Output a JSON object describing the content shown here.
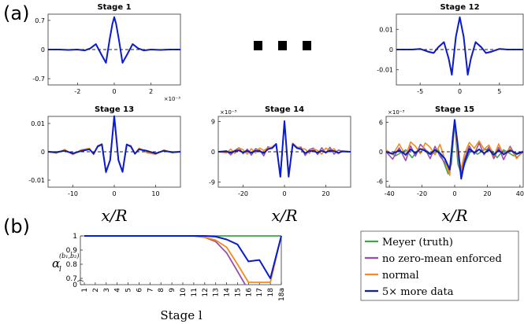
{
  "panel_labels": {
    "a": "(a)",
    "b": "(b)"
  },
  "ellipsis": "■ ■ ■",
  "colors": {
    "meyer": "#3fa34d",
    "no_zero_mean": "#9a4fb0",
    "normal": "#f28c1c",
    "more_data": "#0a1ccf",
    "dashed": "#222222",
    "axis": "#333333"
  },
  "chart_data": [
    {
      "type": "line",
      "title": "Stage 1",
      "xlabel": "",
      "xlim": [
        -3.6,
        3.6
      ],
      "ylim": [
        -0.85,
        0.85
      ],
      "xticks": [
        "-2",
        "0",
        "2"
      ],
      "xtick_values": [
        -2,
        0,
        2
      ],
      "yticks": [
        "0.7",
        "0",
        "-0.7"
      ],
      "ytick_values": [
        0.7,
        0,
        -0.7
      ],
      "x_multiplier": "×10⁻³",
      "series": [
        {
          "key": "more_data",
          "x": [
            -3.6,
            -3,
            -2.5,
            -2,
            -1.6,
            -1.3,
            -1,
            -0.7,
            -0.45,
            -0.25,
            -0.1,
            0,
            0.1,
            0.25,
            0.45,
            0.7,
            1,
            1.3,
            1.6,
            2,
            2.5,
            3,
            3.6
          ],
          "y": [
            0,
            0,
            -0.01,
            0,
            -0.02,
            0.03,
            0.13,
            -0.12,
            -0.32,
            0.25,
            0.62,
            0.78,
            0.62,
            0.25,
            -0.32,
            -0.12,
            0.13,
            0.03,
            -0.02,
            0,
            -0.01,
            0,
            0
          ]
        }
      ]
    },
    {
      "type": "line",
      "title": "Stage 12",
      "xlabel": "",
      "xlim": [
        -8,
        8
      ],
      "ylim": [
        -0.0175,
        0.0175
      ],
      "xticks": [
        "-5",
        "0",
        "5"
      ],
      "xtick_values": [
        -5,
        0,
        5
      ],
      "yticks": [
        "0.01",
        "0",
        "-0.01"
      ],
      "ytick_values": [
        0.01,
        0,
        -0.01
      ],
      "series": [
        {
          "key": "normal",
          "x": [
            -8,
            -6,
            -5,
            -4,
            -3.3,
            -2.7,
            -2,
            -1.4,
            -1,
            -0.5,
            0,
            0.5,
            1,
            1.4,
            2,
            2.7,
            3.3,
            4,
            5,
            6,
            8
          ],
          "y": [
            0,
            0,
            0.0004,
            -0.0012,
            -0.0018,
            0.001,
            0.0035,
            -0.004,
            -0.012,
            0.006,
            0.0155,
            0.006,
            -0.012,
            -0.004,
            0.0035,
            0.001,
            -0.0018,
            -0.0012,
            0.0004,
            0,
            0
          ]
        },
        {
          "key": "more_data",
          "x": [
            -8,
            -6,
            -5,
            -4,
            -3.3,
            -2.7,
            -2,
            -1.4,
            -1,
            -0.5,
            0,
            0.5,
            1,
            1.4,
            2,
            2.7,
            3.3,
            4,
            5,
            6,
            8
          ],
          "y": [
            0,
            0,
            0.0003,
            -0.001,
            -0.0017,
            0.0012,
            0.0037,
            -0.0045,
            -0.0125,
            0.0062,
            0.016,
            0.0062,
            -0.0125,
            -0.0045,
            0.0037,
            0.0012,
            -0.0017,
            -0.001,
            0.0003,
            0,
            0
          ]
        }
      ]
    },
    {
      "type": "line",
      "title": "Stage 13",
      "xlabel": "x/R",
      "xlim": [
        -16,
        16
      ],
      "ylim": [
        -0.0125,
        0.0125
      ],
      "xticks": [
        "-10",
        "0",
        "10"
      ],
      "xtick_values": [
        -10,
        0,
        10
      ],
      "yticks": [
        "0.01",
        "0",
        "-0.01"
      ],
      "ytick_values": [
        0.01,
        0,
        -0.01
      ],
      "series": [
        {
          "key": "meyer",
          "x": [
            -16,
            -14,
            -12,
            -10,
            -8,
            -6,
            -5,
            -4,
            -3,
            -2,
            -1,
            0,
            1,
            2,
            3,
            4,
            5,
            6,
            8,
            10,
            12,
            14,
            16
          ],
          "y": [
            0,
            0,
            0.0003,
            -0.0005,
            0.0002,
            0.0008,
            -0.0006,
            0.0018,
            0.0025,
            -0.007,
            -0.003,
            0.0125,
            -0.003,
            -0.007,
            0.0025,
            0.0018,
            -0.0006,
            0.0008,
            0.0002,
            -0.0005,
            0.0003,
            0,
            0
          ]
        },
        {
          "key": "no_zero_mean",
          "x": [
            -16,
            -14,
            -12,
            -10,
            -8,
            -6,
            -5,
            -4,
            -3,
            -2,
            -1,
            0,
            1,
            2,
            3,
            4,
            5,
            6,
            8,
            10,
            12,
            14,
            16
          ],
          "y": [
            0,
            -0.0004,
            0.0006,
            -0.0008,
            0.0005,
            0.0011,
            -0.0009,
            0.0021,
            0.0027,
            -0.0074,
            -0.0028,
            0.0123,
            -0.0032,
            -0.0071,
            0.0023,
            0.002,
            -0.0008,
            0.0011,
            -0.0003,
            -0.0007,
            0.0005,
            -0.0002,
            0
          ]
        },
        {
          "key": "normal",
          "x": [
            -16,
            -14,
            -12,
            -10,
            -8,
            -6,
            -5,
            -4,
            -3,
            -2,
            -1,
            0,
            1,
            2,
            3,
            4,
            5,
            6,
            8,
            10,
            12,
            14,
            16
          ],
          "y": [
            0.0002,
            -0.0005,
            0.0008,
            -0.001,
            0.0007,
            0.0012,
            -0.001,
            0.002,
            0.0028,
            -0.0073,
            -0.0027,
            0.0124,
            -0.0031,
            -0.0072,
            0.0024,
            0.0022,
            -0.0007,
            0.0013,
            -0.0004,
            -0.0009,
            0.0006,
            -0.0003,
            0.0002
          ]
        },
        {
          "key": "more_data",
          "x": [
            -16,
            -14,
            -12,
            -10,
            -8,
            -6,
            -5,
            -4,
            -3,
            -2,
            -1,
            0,
            1,
            2,
            3,
            4,
            5,
            6,
            8,
            10,
            12,
            14,
            16
          ],
          "y": [
            0,
            -0.0002,
            0.0004,
            -0.0006,
            0.0003,
            0.0009,
            -0.0007,
            0.0019,
            0.0026,
            -0.0071,
            -0.0029,
            0.0126,
            -0.0029,
            -0.0071,
            0.0026,
            0.0019,
            -0.0007,
            0.0009,
            0.0003,
            -0.0006,
            0.0004,
            -0.0002,
            0
          ]
        }
      ]
    },
    {
      "type": "line",
      "title": "Stage 14",
      "xlabel": "x/R",
      "xlim": [
        -32,
        32
      ],
      "ylim": [
        -0.0105,
        0.0105
      ],
      "xticks": [
        "-20",
        "0",
        "20"
      ],
      "xtick_values": [
        -20,
        0,
        20
      ],
      "yticks": [
        "9",
        "0",
        "-9"
      ],
      "ytick_values": [
        0.009,
        0,
        -0.009
      ],
      "y_multiplier": "×10⁻³",
      "series": [
        {
          "key": "no_zero_mean",
          "x": [
            -32,
            -28,
            -26,
            -24,
            -22,
            -20,
            -18,
            -16,
            -14,
            -12,
            -10,
            -8,
            -6,
            -4,
            -2,
            0,
            2,
            4,
            6,
            8,
            10,
            12,
            14,
            16,
            18,
            20,
            22,
            24,
            26,
            28,
            32
          ],
          "y": [
            0,
            0.0003,
            -0.0009,
            0.0004,
            0.0012,
            -0.0006,
            0.0008,
            -0.001,
            0.0009,
            0.0005,
            -0.0012,
            0.0015,
            0.001,
            0.0022,
            -0.0075,
            0.009,
            -0.0072,
            0.0022,
            0.0012,
            0.0014,
            -0.0011,
            0.0006,
            0.0011,
            -0.0008,
            0.0012,
            -0.0004,
            0.0013,
            -0.0007,
            0.0005,
            0.0002,
            0
          ]
        },
        {
          "key": "normal",
          "x": [
            -32,
            -28,
            -26,
            -24,
            -22,
            -20,
            -18,
            -16,
            -14,
            -12,
            -10,
            -8,
            -6,
            -4,
            -2,
            0,
            2,
            4,
            6,
            8,
            10,
            12,
            14,
            16,
            18,
            20,
            22,
            24,
            26,
            28,
            32
          ],
          "y": [
            0,
            -0.0003,
            0.0008,
            -0.0005,
            0.0011,
            0.0006,
            -0.0007,
            0.0009,
            -0.0004,
            0.0011,
            0.0004,
            0.0012,
            0.0014,
            0.0024,
            -0.0073,
            0.0088,
            -0.007,
            0.0025,
            0.0015,
            0.0009,
            0.0008,
            -0.0005,
            0.0009,
            0.0004,
            -0.0007,
            0.0011,
            0.0003,
            0.0009,
            -0.0006,
            0.0003,
            0
          ]
        },
        {
          "key": "more_data",
          "x": [
            -32,
            -28,
            -26,
            -24,
            -22,
            -20,
            -18,
            -16,
            -14,
            -12,
            -10,
            -8,
            -6,
            -4,
            -2,
            0,
            2,
            4,
            6,
            8,
            10,
            12,
            14,
            16,
            18,
            20,
            22,
            24,
            26,
            28,
            32
          ],
          "y": [
            0,
            0.0001,
            -0.0003,
            0.0002,
            0.0004,
            -0.0002,
            0.0003,
            -0.0003,
            0.0003,
            0.0002,
            -0.0004,
            0.0008,
            0.0011,
            0.0023,
            -0.0074,
            0.0091,
            -0.0074,
            0.0023,
            0.0011,
            0.0008,
            -0.0004,
            0.0002,
            0.0003,
            -0.0003,
            0.0003,
            -0.0002,
            0.0004,
            0.0002,
            -0.0003,
            0.0001,
            0
          ]
        }
      ]
    },
    {
      "type": "line",
      "title": "Stage 15",
      "xlabel": "x/R",
      "xlim": [
        -42,
        42
      ],
      "ylim": [
        -0.0072,
        0.0072
      ],
      "xticks": [
        "-40",
        "-20",
        "0",
        "20",
        "40"
      ],
      "xtick_values": [
        -40,
        -20,
        0,
        20,
        40
      ],
      "yticks": [
        "6",
        "0",
        "-6"
      ],
      "ytick_values": [
        0.006,
        0,
        -0.006
      ],
      "y_multiplier": "×10⁻³",
      "series": [
        {
          "key": "meyer",
          "x": [
            -42,
            -36,
            -30,
            -26,
            -22,
            -18,
            -14,
            -10,
            -7,
            -4,
            -2,
            0,
            2,
            4,
            7,
            10,
            14,
            18,
            22,
            26,
            30,
            36,
            42
          ],
          "y": [
            0,
            -0.0008,
            0.0004,
            -0.0012,
            0.0006,
            0.0004,
            -0.0005,
            0.0004,
            -0.0018,
            -0.0045,
            -0.0025,
            0.006,
            -0.0025,
            -0.0045,
            -0.0018,
            0.0004,
            -0.0005,
            0.0004,
            0.0006,
            -0.0012,
            0.0004,
            -0.0008,
            0
          ]
        },
        {
          "key": "no_zero_mean",
          "x": [
            -42,
            -38,
            -34,
            -30,
            -27,
            -24,
            -21,
            -18,
            -15,
            -12,
            -9,
            -6,
            -3,
            -1,
            0,
            2,
            4,
            6,
            9,
            12,
            15,
            18,
            21,
            24,
            27,
            30,
            34,
            38,
            42
          ],
          "y": [
            0,
            -0.0015,
            0.0008,
            -0.0018,
            0.0012,
            -0.0009,
            0.0015,
            0.0005,
            -0.0014,
            0.0011,
            -0.0009,
            -0.0022,
            -0.004,
            0.0035,
            0.0058,
            -0.0008,
            -0.0045,
            -0.0015,
            0.0012,
            -0.0005,
            0.0018,
            -0.0006,
            0.001,
            -0.0014,
            0.0009,
            -0.0016,
            0.0011,
            -0.0012,
            0
          ]
        },
        {
          "key": "normal",
          "x": [
            -42,
            -38,
            -34,
            -30,
            -27,
            -24,
            -21,
            -18,
            -15,
            -12,
            -9,
            -6,
            -3,
            -1,
            0,
            2,
            4,
            6,
            9,
            12,
            15,
            18,
            21,
            24,
            27,
            30,
            34,
            38,
            42
          ],
          "y": [
            0.0004,
            -0.0006,
            0.0016,
            -0.0008,
            0.002,
            0.0011,
            -0.0004,
            0.0018,
            0.0009,
            -0.0006,
            0.0015,
            -0.0016,
            -0.0048,
            0.0038,
            0.0062,
            -0.0004,
            -0.0035,
            -0.0005,
            0.0019,
            0.0007,
            0.0022,
            0.0005,
            0.0014,
            -0.0009,
            0.0016,
            -0.0007,
            0.0008,
            -0.0014,
            0.0003
          ]
        },
        {
          "key": "more_data",
          "x": [
            -42,
            -38,
            -34,
            -30,
            -27,
            -24,
            -21,
            -18,
            -15,
            -12,
            -9,
            -6,
            -3,
            -1,
            0,
            2,
            4,
            6,
            9,
            12,
            15,
            18,
            21,
            24,
            27,
            30,
            34,
            38,
            42
          ],
          "y": [
            0,
            -0.0004,
            0.0003,
            -0.0006,
            0.0005,
            -0.0003,
            0.0006,
            0.0002,
            -0.0005,
            0.0004,
            -0.0003,
            -0.0014,
            -0.0036,
            0.0032,
            0.0065,
            0.0011,
            -0.0055,
            -0.0022,
            0.0006,
            -0.0002,
            0.0005,
            -0.0003,
            0.0004,
            -0.0006,
            0.0003,
            -0.0005,
            0.0003,
            -0.0004,
            0
          ]
        }
      ]
    },
    {
      "type": "line",
      "title": "",
      "xlabel": "Stage l",
      "ylabel": "α_l^(b1,b2)",
      "categories": [
        "1",
        "2",
        "3",
        "4",
        "5",
        "6",
        "7",
        "8",
        "9",
        "10",
        "11",
        "12",
        "13",
        "14",
        "15",
        "16",
        "17",
        "18",
        "18a"
      ],
      "ylim": [
        0,
        1
      ],
      "yticks": [
        "1",
        "0.9",
        "0.8",
        "0.7",
        "0"
      ],
      "axis_break": true,
      "legend_position": "right",
      "series": [
        {
          "key": "meyer",
          "name": "Meyer (truth)",
          "values": [
            1,
            1,
            1,
            1,
            1,
            1,
            1,
            1,
            1,
            1,
            1,
            1,
            1,
            1,
            1,
            1,
            1,
            1,
            1
          ]
        },
        {
          "key": "no_zero_mean",
          "name": "no zero-mean enforced",
          "values": [
            1,
            1,
            1,
            1,
            1,
            1,
            1,
            1,
            1,
            1,
            1,
            0.99,
            0.96,
            0.88,
            0.75,
            null,
            null,
            null,
            null
          ]
        },
        {
          "key": "normal",
          "name": "normal",
          "values": [
            1,
            1,
            1,
            1,
            1,
            1,
            1,
            1,
            1,
            1,
            1,
            0.99,
            0.97,
            0.92,
            0.82,
            0.7,
            0.71,
            0.7,
            1
          ]
        },
        {
          "key": "more_data",
          "name": "5× more data",
          "values": [
            1,
            1,
            1,
            1,
            1,
            1,
            1,
            1,
            1,
            1,
            1,
            1,
            0.995,
            0.975,
            0.94,
            0.82,
            0.83,
            0.7,
            1
          ]
        }
      ]
    }
  ]
}
